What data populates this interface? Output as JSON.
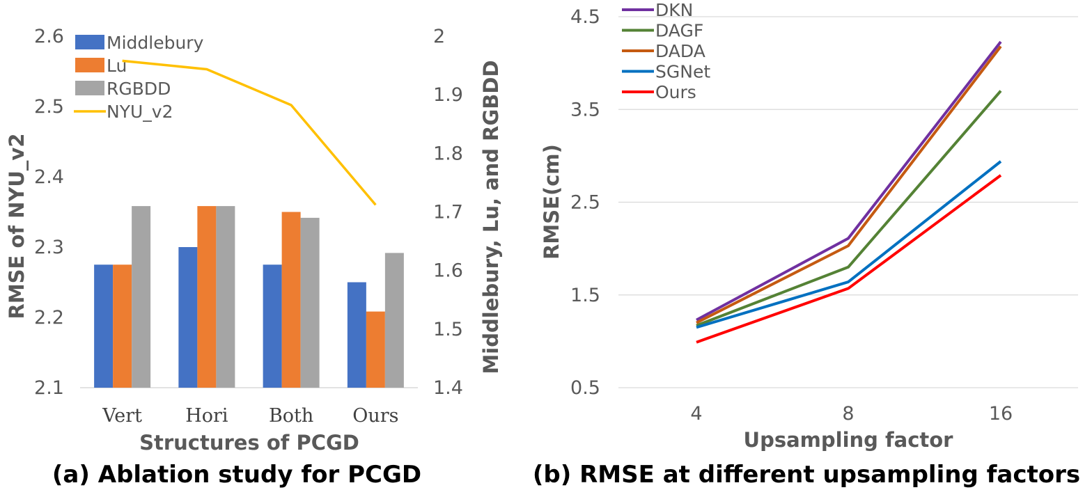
{
  "chart_data": [
    {
      "type": "bar",
      "caption": "(a) Ablation study for PCGD",
      "xlabel": "Structures of PCGD",
      "ylabel_left": "RMSE of NYU_v2",
      "ylabel_right": "Middlebury, Lu, and RGBDD",
      "categories": [
        "Vert",
        "Hori",
        "Both",
        "Ours"
      ],
      "ylim_left": [
        2.1,
        2.6
      ],
      "yticks_left": [
        "2.1",
        "2.2",
        "2.3",
        "2.4",
        "2.5",
        "2.6"
      ],
      "ylim_right": [
        1.4,
        2.0
      ],
      "yticks_right": [
        "1.4",
        "1.5",
        "1.6",
        "1.7",
        "1.8",
        "1.9",
        "2"
      ],
      "series": [
        {
          "name": "Middlebury",
          "axis": "right",
          "kind": "bar",
          "color": "#4472C4",
          "values": [
            1.61,
            1.64,
            1.61,
            1.58
          ]
        },
        {
          "name": "Lu",
          "axis": "right",
          "kind": "bar",
          "color": "#ED7D31",
          "values": [
            1.61,
            1.71,
            1.7,
            1.53
          ]
        },
        {
          "name": "RGBDD",
          "axis": "right",
          "kind": "bar",
          "color": "#A5A5A5",
          "values": [
            1.71,
            1.71,
            1.69,
            1.63
          ]
        },
        {
          "name": "NYU_v2",
          "axis": "left",
          "kind": "line",
          "color": "#FFC000",
          "values": [
            2.565,
            2.553,
            2.502,
            2.36
          ]
        }
      ]
    },
    {
      "type": "line",
      "caption": "(b) RMSE at different upsampling factors",
      "xlabel": "Upsampling factor",
      "ylabel": "RMSE(cm)",
      "categories": [
        "4",
        "8",
        "16"
      ],
      "ylim": [
        0.5,
        4.5
      ],
      "yticks": [
        "0.5",
        "1.5",
        "2.5",
        "3.5",
        "4.5"
      ],
      "series": [
        {
          "name": "DKN",
          "color": "#7030A0",
          "values": [
            1.23,
            2.11,
            4.23
          ]
        },
        {
          "name": "DAGF",
          "color": "#548235",
          "values": [
            1.17,
            1.8,
            3.7
          ]
        },
        {
          "name": "DADA",
          "color": "#C55A11",
          "values": [
            1.2,
            2.03,
            4.18
          ]
        },
        {
          "name": "SGNet",
          "color": "#0070C0",
          "values": [
            1.15,
            1.64,
            2.94
          ]
        },
        {
          "name": "Ours",
          "color": "#FF0000",
          "values": [
            0.99,
            1.57,
            2.79
          ]
        }
      ]
    }
  ]
}
